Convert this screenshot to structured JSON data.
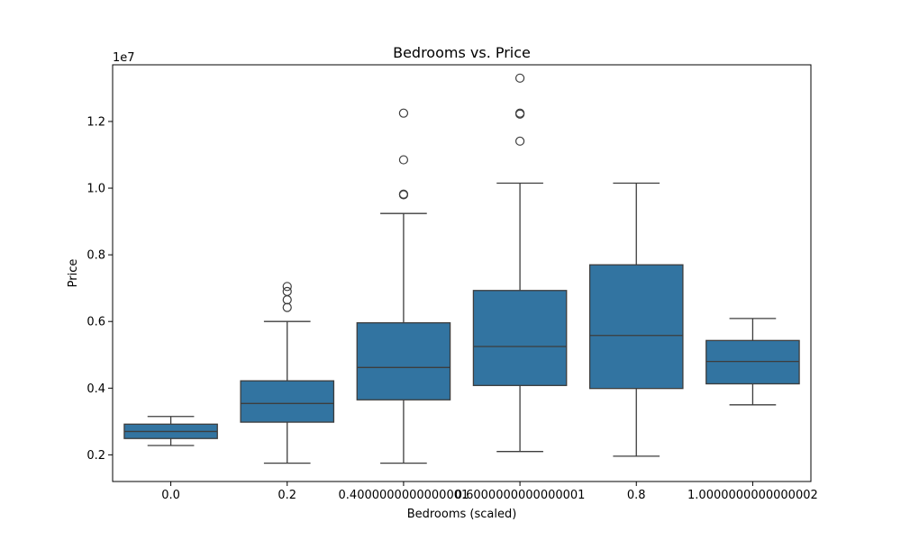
{
  "chart_data": {
    "type": "box",
    "title": "Bedrooms vs. Price",
    "xlabel": "Bedrooms (scaled)",
    "ylabel": "Price",
    "y_offset_label": "1e7",
    "ylim": [
      1200000,
      13700000
    ],
    "yticks": [
      2000000,
      4000000,
      6000000,
      8000000,
      10000000,
      12000000
    ],
    "ytick_labels": [
      "0.2",
      "0.4",
      "0.6",
      "0.8",
      "1.0",
      "1.2"
    ],
    "categories": [
      "0.0",
      "0.2",
      "0.4000000000000001",
      "0.6000000000000001",
      "0.8",
      "1.0000000000000002"
    ],
    "box_color": "#3274a1",
    "line_color": "#3d3d3d",
    "boxes": [
      {
        "category": "0.0",
        "whisker_low": 2280000,
        "q1": 2490000,
        "median": 2700000,
        "q3": 2920000,
        "whisker_high": 3150000,
        "outliers": []
      },
      {
        "category": "0.2",
        "whisker_low": 1750000,
        "q1": 2980000,
        "median": 3540000,
        "q3": 4220000,
        "whisker_high": 6000000,
        "outliers": [
          6420000,
          6650000,
          6900000,
          7050000
        ]
      },
      {
        "category": "0.4000000000000001",
        "whisker_low": 1750000,
        "q1": 3650000,
        "median": 4620000,
        "q3": 5960000,
        "whisker_high": 9240000,
        "outliers": [
          9800000,
          9820000,
          10850000,
          12250000
        ]
      },
      {
        "category": "0.6000000000000001",
        "whisker_low": 2100000,
        "q1": 4080000,
        "median": 5250000,
        "q3": 6930000,
        "whisker_high": 10150000,
        "outliers": [
          11410000,
          12220000,
          12250000,
          13300000
        ]
      },
      {
        "category": "0.8",
        "whisker_low": 1960000,
        "q1": 3990000,
        "median": 5580000,
        "q3": 7700000,
        "whisker_high": 10150000,
        "outliers": []
      },
      {
        "category": "1.0000000000000002",
        "whisker_low": 3500000,
        "q1": 4130000,
        "median": 4800000,
        "q3": 5430000,
        "whisker_high": 6090000,
        "outliers": []
      }
    ]
  }
}
